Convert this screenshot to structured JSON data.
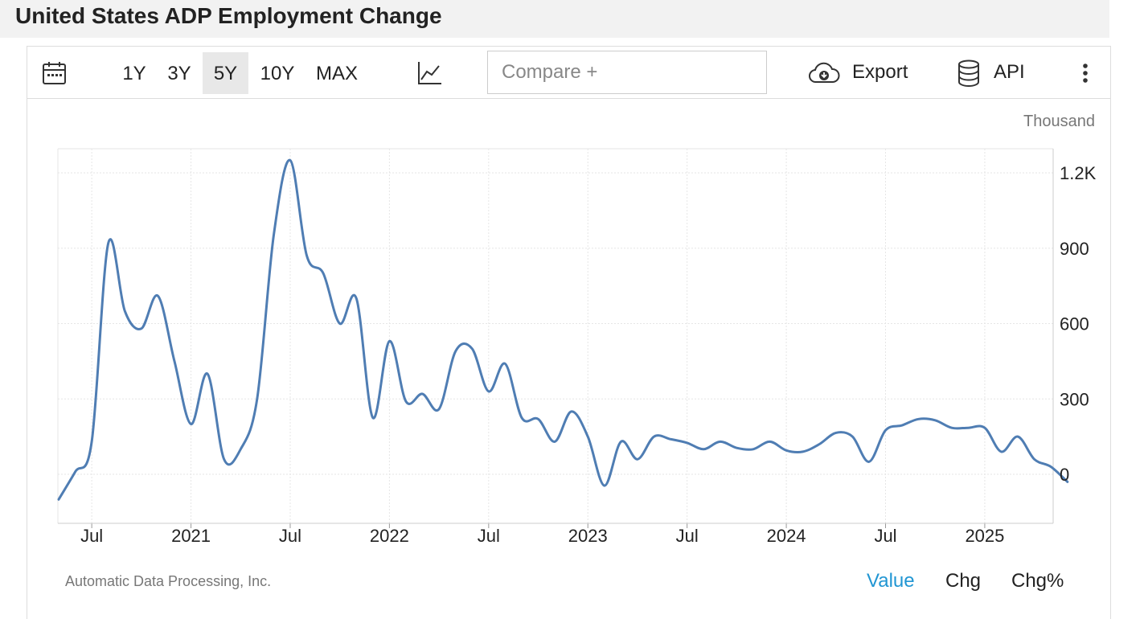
{
  "page": {
    "title": "United States ADP Employment Change"
  },
  "toolbar": {
    "ranges": [
      "1Y",
      "3Y",
      "5Y",
      "10Y",
      "MAX"
    ],
    "active_range": "5Y",
    "compare_placeholder": "Compare +",
    "export_label": "Export",
    "api_label": "API"
  },
  "icons": {
    "calendar": "calendar-icon",
    "chart_type": "line-chart-icon",
    "export": "cloud-download-icon",
    "api": "database-icon",
    "more": "more-vertical-icon"
  },
  "colors": {
    "line": "#4f7db3",
    "active_tab": "#2196d3",
    "grid": "#e6e6e6"
  },
  "chart_data": {
    "type": "line",
    "title": "",
    "unit": "Thousand",
    "source": "Automatic Data Processing, Inc.",
    "x_ticks": [
      "Jul",
      "2021",
      "Jul",
      "2022",
      "Jul",
      "2023",
      "Jul",
      "2024",
      "Jul",
      "2025"
    ],
    "y_ticks": [
      "0",
      "300",
      "600",
      "900",
      "1.2K"
    ],
    "y_tick_values": [
      0,
      300,
      600,
      900,
      1200
    ],
    "ylim": [
      -200,
      1300
    ],
    "grid": true,
    "axis_position": "right",
    "series": [
      {
        "values": [
          {
            "x": "2020-05",
            "y": -100
          },
          {
            "x": "2020-06",
            "y": 10
          },
          {
            "x": "2020-07",
            "y": 130
          },
          {
            "x": "2020-08",
            "y": 920
          },
          {
            "x": "2020-09",
            "y": 650
          },
          {
            "x": "2020-10",
            "y": 580
          },
          {
            "x": "2020-11",
            "y": 710
          },
          {
            "x": "2020-12",
            "y": 450
          },
          {
            "x": "2021-01",
            "y": 200
          },
          {
            "x": "2021-02",
            "y": 400
          },
          {
            "x": "2021-03",
            "y": 60
          },
          {
            "x": "2021-04",
            "y": 100
          },
          {
            "x": "2021-05",
            "y": 300
          },
          {
            "x": "2021-06",
            "y": 950
          },
          {
            "x": "2021-07",
            "y": 1250
          },
          {
            "x": "2021-08",
            "y": 870
          },
          {
            "x": "2021-09",
            "y": 800
          },
          {
            "x": "2021-10",
            "y": 600
          },
          {
            "x": "2021-11",
            "y": 700
          },
          {
            "x": "2021-12",
            "y": 225
          },
          {
            "x": "2022-01",
            "y": 530
          },
          {
            "x": "2022-02",
            "y": 290
          },
          {
            "x": "2022-03",
            "y": 320
          },
          {
            "x": "2022-04",
            "y": 260
          },
          {
            "x": "2022-05",
            "y": 490
          },
          {
            "x": "2022-06",
            "y": 500
          },
          {
            "x": "2022-07",
            "y": 330
          },
          {
            "x": "2022-08",
            "y": 440
          },
          {
            "x": "2022-09",
            "y": 225
          },
          {
            "x": "2022-10",
            "y": 220
          },
          {
            "x": "2022-11",
            "y": 130
          },
          {
            "x": "2022-12",
            "y": 250
          },
          {
            "x": "2023-01",
            "y": 150
          },
          {
            "x": "2023-02",
            "y": -45
          },
          {
            "x": "2023-03",
            "y": 130
          },
          {
            "x": "2023-04",
            "y": 60
          },
          {
            "x": "2023-05",
            "y": 150
          },
          {
            "x": "2023-06",
            "y": 140
          },
          {
            "x": "2023-07",
            "y": 125
          },
          {
            "x": "2023-08",
            "y": 100
          },
          {
            "x": "2023-09",
            "y": 130
          },
          {
            "x": "2023-10",
            "y": 105
          },
          {
            "x": "2023-11",
            "y": 100
          },
          {
            "x": "2023-12",
            "y": 130
          },
          {
            "x": "2024-01",
            "y": 95
          },
          {
            "x": "2024-02",
            "y": 90
          },
          {
            "x": "2024-03",
            "y": 120
          },
          {
            "x": "2024-04",
            "y": 165
          },
          {
            "x": "2024-05",
            "y": 150
          },
          {
            "x": "2024-06",
            "y": 50
          },
          {
            "x": "2024-07",
            "y": 175
          },
          {
            "x": "2024-08",
            "y": 195
          },
          {
            "x": "2024-09",
            "y": 220
          },
          {
            "x": "2024-10",
            "y": 215
          },
          {
            "x": "2024-11",
            "y": 185
          },
          {
            "x": "2024-12",
            "y": 185
          },
          {
            "x": "2025-01",
            "y": 185
          },
          {
            "x": "2025-02",
            "y": 90
          },
          {
            "x": "2025-03",
            "y": 150
          },
          {
            "x": "2025-04",
            "y": 60
          },
          {
            "x": "2025-05",
            "y": 30
          },
          {
            "x": "2025-06",
            "y": -30
          }
        ]
      }
    ]
  },
  "view_tabs": [
    "Value",
    "Chg",
    "Chg%"
  ],
  "active_view": "Value"
}
